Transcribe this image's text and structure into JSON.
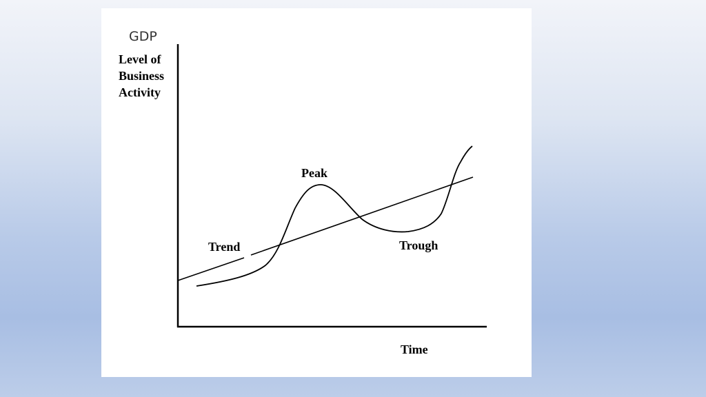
{
  "title": "GDP",
  "y_axis_label": [
    "Level of",
    "Business",
    "Activity"
  ],
  "x_axis_label": "Time",
  "annotations": {
    "peak": "Peak",
    "trend": "Trend",
    "trough": "Trough"
  }
}
